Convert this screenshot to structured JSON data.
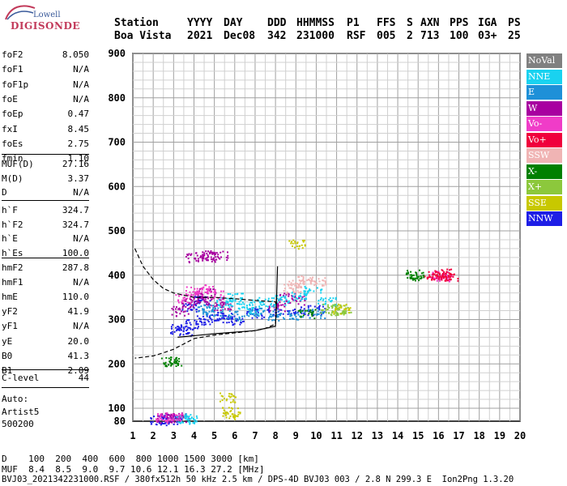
{
  "logo": {
    "top": "Lowell",
    "brand": "DIGISONDE"
  },
  "header": {
    "row1": [
      "Station",
      "YYYY",
      "DAY",
      "DDD",
      "HHMMSS",
      "P1",
      "FFS",
      "S",
      "AXN",
      "PPS",
      "IGA",
      "PS"
    ],
    "row2": [
      "Boa Vista",
      "2021",
      "Dec08",
      "342",
      "231000",
      "RSF",
      "005",
      "2",
      "713",
      "100",
      "03+",
      "25"
    ]
  },
  "params": {
    "group1": [
      {
        "label": "foF2",
        "value": "8.050"
      },
      {
        "label": "foF1",
        "value": "N/A"
      },
      {
        "label": "foF1p",
        "value": "N/A"
      },
      {
        "label": "foE",
        "value": "N/A"
      },
      {
        "label": "foEp",
        "value": "0.47"
      },
      {
        "label": "fxI",
        "value": "8.45"
      },
      {
        "label": "foEs",
        "value": "2.75"
      },
      {
        "label": "fmin",
        "value": "1.10"
      }
    ],
    "group2": [
      {
        "label": "MUF(D)",
        "value": "27.16"
      },
      {
        "label": "M(D)",
        "value": "3.37"
      },
      {
        "label": "D",
        "value": "N/A"
      }
    ],
    "group3": [
      {
        "label": "h`F",
        "value": "324.7"
      },
      {
        "label": "h`F2",
        "value": "324.7"
      },
      {
        "label": "h`E",
        "value": "N/A"
      },
      {
        "label": "h`Es",
        "value": "100.0"
      }
    ],
    "group4": [
      {
        "label": "hmF2",
        "value": "287.8"
      },
      {
        "label": "hmF1",
        "value": "N/A"
      },
      {
        "label": "hmE",
        "value": "110.0"
      },
      {
        "label": "yF2",
        "value": "41.9"
      },
      {
        "label": "yF1",
        "value": "N/A"
      },
      {
        "label": "yE",
        "value": "20.0"
      },
      {
        "label": "B0",
        "value": "41.3"
      },
      {
        "label": "B1",
        "value": "2.09"
      }
    ],
    "clevel": {
      "label": "C-level",
      "value": "44"
    },
    "auto": [
      "Auto:",
      "Artist5",
      "500200"
    ]
  },
  "legend": [
    {
      "label": "NoVal",
      "color": "#808080"
    },
    {
      "label": "NNE",
      "color": "#19d2f0"
    },
    {
      "label": "E",
      "color": "#1e90d8"
    },
    {
      "label": "W",
      "color": "#a800a0"
    },
    {
      "label": "Vo-",
      "color": "#f03cc8"
    },
    {
      "label": "Vo+",
      "color": "#f0003c"
    },
    {
      "label": "SSW",
      "color": "#f0b4b4"
    },
    {
      "label": "X-",
      "color": "#008000"
    },
    {
      "label": "X+",
      "color": "#8cc83c"
    },
    {
      "label": "SSE",
      "color": "#c8c800"
    },
    {
      "label": "NNW",
      "color": "#1e1ee6"
    }
  ],
  "chart_data": {
    "type": "scatter",
    "x_ticks": [
      "1",
      "2",
      "3",
      "4",
      "5",
      "6",
      "7",
      "8",
      "9",
      "10",
      "11",
      "12",
      "13",
      "14",
      "15",
      "16",
      "17",
      "18",
      "19",
      "20"
    ],
    "y_ticks": [
      "80",
      "100",
      "200",
      "300",
      "400",
      "500",
      "600",
      "700",
      "800",
      "900"
    ],
    "xlim": [
      1,
      20
    ],
    "ylim": [
      80,
      900
    ],
    "grid": true,
    "clusters": [
      {
        "name": "NNW",
        "points": [
          [
            3.2,
            280
          ],
          [
            3.5,
            275
          ],
          [
            4.0,
            290
          ],
          [
            4.5,
            300
          ],
          [
            5.0,
            310
          ],
          [
            5.5,
            305
          ],
          [
            6.0,
            300
          ],
          [
            7.0,
            315
          ],
          [
            8.0,
            318
          ],
          [
            9.0,
            320
          ],
          [
            10.0,
            322
          ],
          [
            3.8,
            330
          ],
          [
            4.4,
            345
          ],
          [
            2.2,
            82
          ],
          [
            2.6,
            84
          ],
          [
            3.0,
            83
          ]
        ]
      },
      {
        "name": "W",
        "points": [
          [
            3.3,
            320
          ],
          [
            3.8,
            340
          ],
          [
            4.2,
            350
          ],
          [
            4.6,
            360
          ],
          [
            5.0,
            340
          ],
          [
            5.4,
            330
          ],
          [
            4.0,
            440
          ],
          [
            4.4,
            445
          ],
          [
            4.8,
            442
          ],
          [
            5.2,
            446
          ],
          [
            2.6,
            85
          ],
          [
            3.0,
            86
          ],
          [
            3.3,
            87
          ],
          [
            8.0,
            330
          ],
          [
            8.5,
            350
          ],
          [
            9.0,
            345
          ]
        ]
      },
      {
        "name": "NNE",
        "points": [
          [
            5.5,
            340
          ],
          [
            6.0,
            350
          ],
          [
            6.5,
            335
          ],
          [
            7.0,
            325
          ],
          [
            7.5,
            340
          ],
          [
            8.3,
            345
          ],
          [
            9.2,
            355
          ],
          [
            9.8,
            365
          ],
          [
            10.5,
            340
          ],
          [
            3.5,
            84
          ],
          [
            3.7,
            85
          ]
        ]
      },
      {
        "name": "E",
        "points": [
          [
            5.0,
            320
          ],
          [
            6.0,
            310
          ],
          [
            7.0,
            320
          ],
          [
            8.0,
            310
          ],
          [
            9.0,
            312
          ],
          [
            10.0,
            315
          ],
          [
            4.5,
            325
          ]
        ]
      },
      {
        "name": "Vo-",
        "points": [
          [
            3.5,
            350
          ],
          [
            4.0,
            365
          ],
          [
            4.5,
            370
          ],
          [
            5.0,
            360
          ],
          [
            2.5,
            85
          ],
          [
            3.0,
            88
          ],
          [
            16.0,
            400
          ],
          [
            16.2,
            395
          ]
        ]
      },
      {
        "name": "Vo+",
        "points": [
          [
            15.7,
            402
          ],
          [
            16.0,
            400
          ],
          [
            16.3,
            405
          ],
          [
            16.5,
            398
          ]
        ]
      },
      {
        "name": "SSW",
        "points": [
          [
            9.0,
            380
          ],
          [
            9.5,
            390
          ],
          [
            10.0,
            385
          ],
          [
            8.8,
            370
          ]
        ]
      },
      {
        "name": "X-",
        "points": [
          [
            3.0,
            205
          ],
          [
            2.8,
            207
          ],
          [
            9.5,
            315
          ],
          [
            15.0,
            400
          ],
          [
            14.8,
            402
          ]
        ]
      },
      {
        "name": "X+",
        "points": [
          [
            10.6,
            325
          ],
          [
            11.0,
            322
          ],
          [
            11.3,
            325
          ]
        ]
      },
      {
        "name": "SSE",
        "points": [
          [
            5.8,
            90
          ],
          [
            5.8,
            95
          ],
          [
            5.6,
            125
          ],
          [
            9.0,
            470
          ],
          [
            11.2,
            325
          ]
        ]
      }
    ],
    "trace_curve": [
      [
        1.1,
        460
      ],
      [
        1.5,
        420
      ],
      [
        2.0,
        390
      ],
      [
        2.5,
        370
      ],
      [
        3.0,
        360
      ],
      [
        3.5,
        355
      ],
      [
        4.0,
        350
      ],
      [
        5.0,
        350
      ],
      [
        6.0,
        347
      ],
      [
        7.0,
        343
      ],
      [
        8.0,
        340
      ],
      [
        8.05,
        330
      ],
      [
        8.0,
        290
      ],
      [
        7.5,
        280
      ],
      [
        7.0,
        275
      ],
      [
        6.0,
        270
      ],
      [
        5.0,
        265
      ],
      [
        4.0,
        257
      ],
      [
        3.5,
        245
      ],
      [
        3.0,
        233
      ],
      [
        2.5,
        225
      ],
      [
        2.0,
        218
      ],
      [
        1.5,
        215
      ],
      [
        1.1,
        213
      ]
    ],
    "solid_profile": [
      [
        3.2,
        260
      ],
      [
        5.0,
        268
      ],
      [
        7.0,
        275
      ],
      [
        8.0,
        285
      ],
      [
        8.05,
        340
      ],
      [
        8.1,
        420
      ]
    ]
  },
  "bottom": {
    "line1": "D    100  200  400  600  800 1000 1500 3000 [km]",
    "line2": "MUF  8.4  8.5  9.0  9.7 10.6 12.1 16.3 27.2 [MHz]",
    "line3": "BVJ03_2021342231000.RSF / 380fx512h 50 kHz 2.5 km / DPS-4D BVJ03 003 / 2.8 N 299.3 E  Ion2Png 1.3.20"
  }
}
